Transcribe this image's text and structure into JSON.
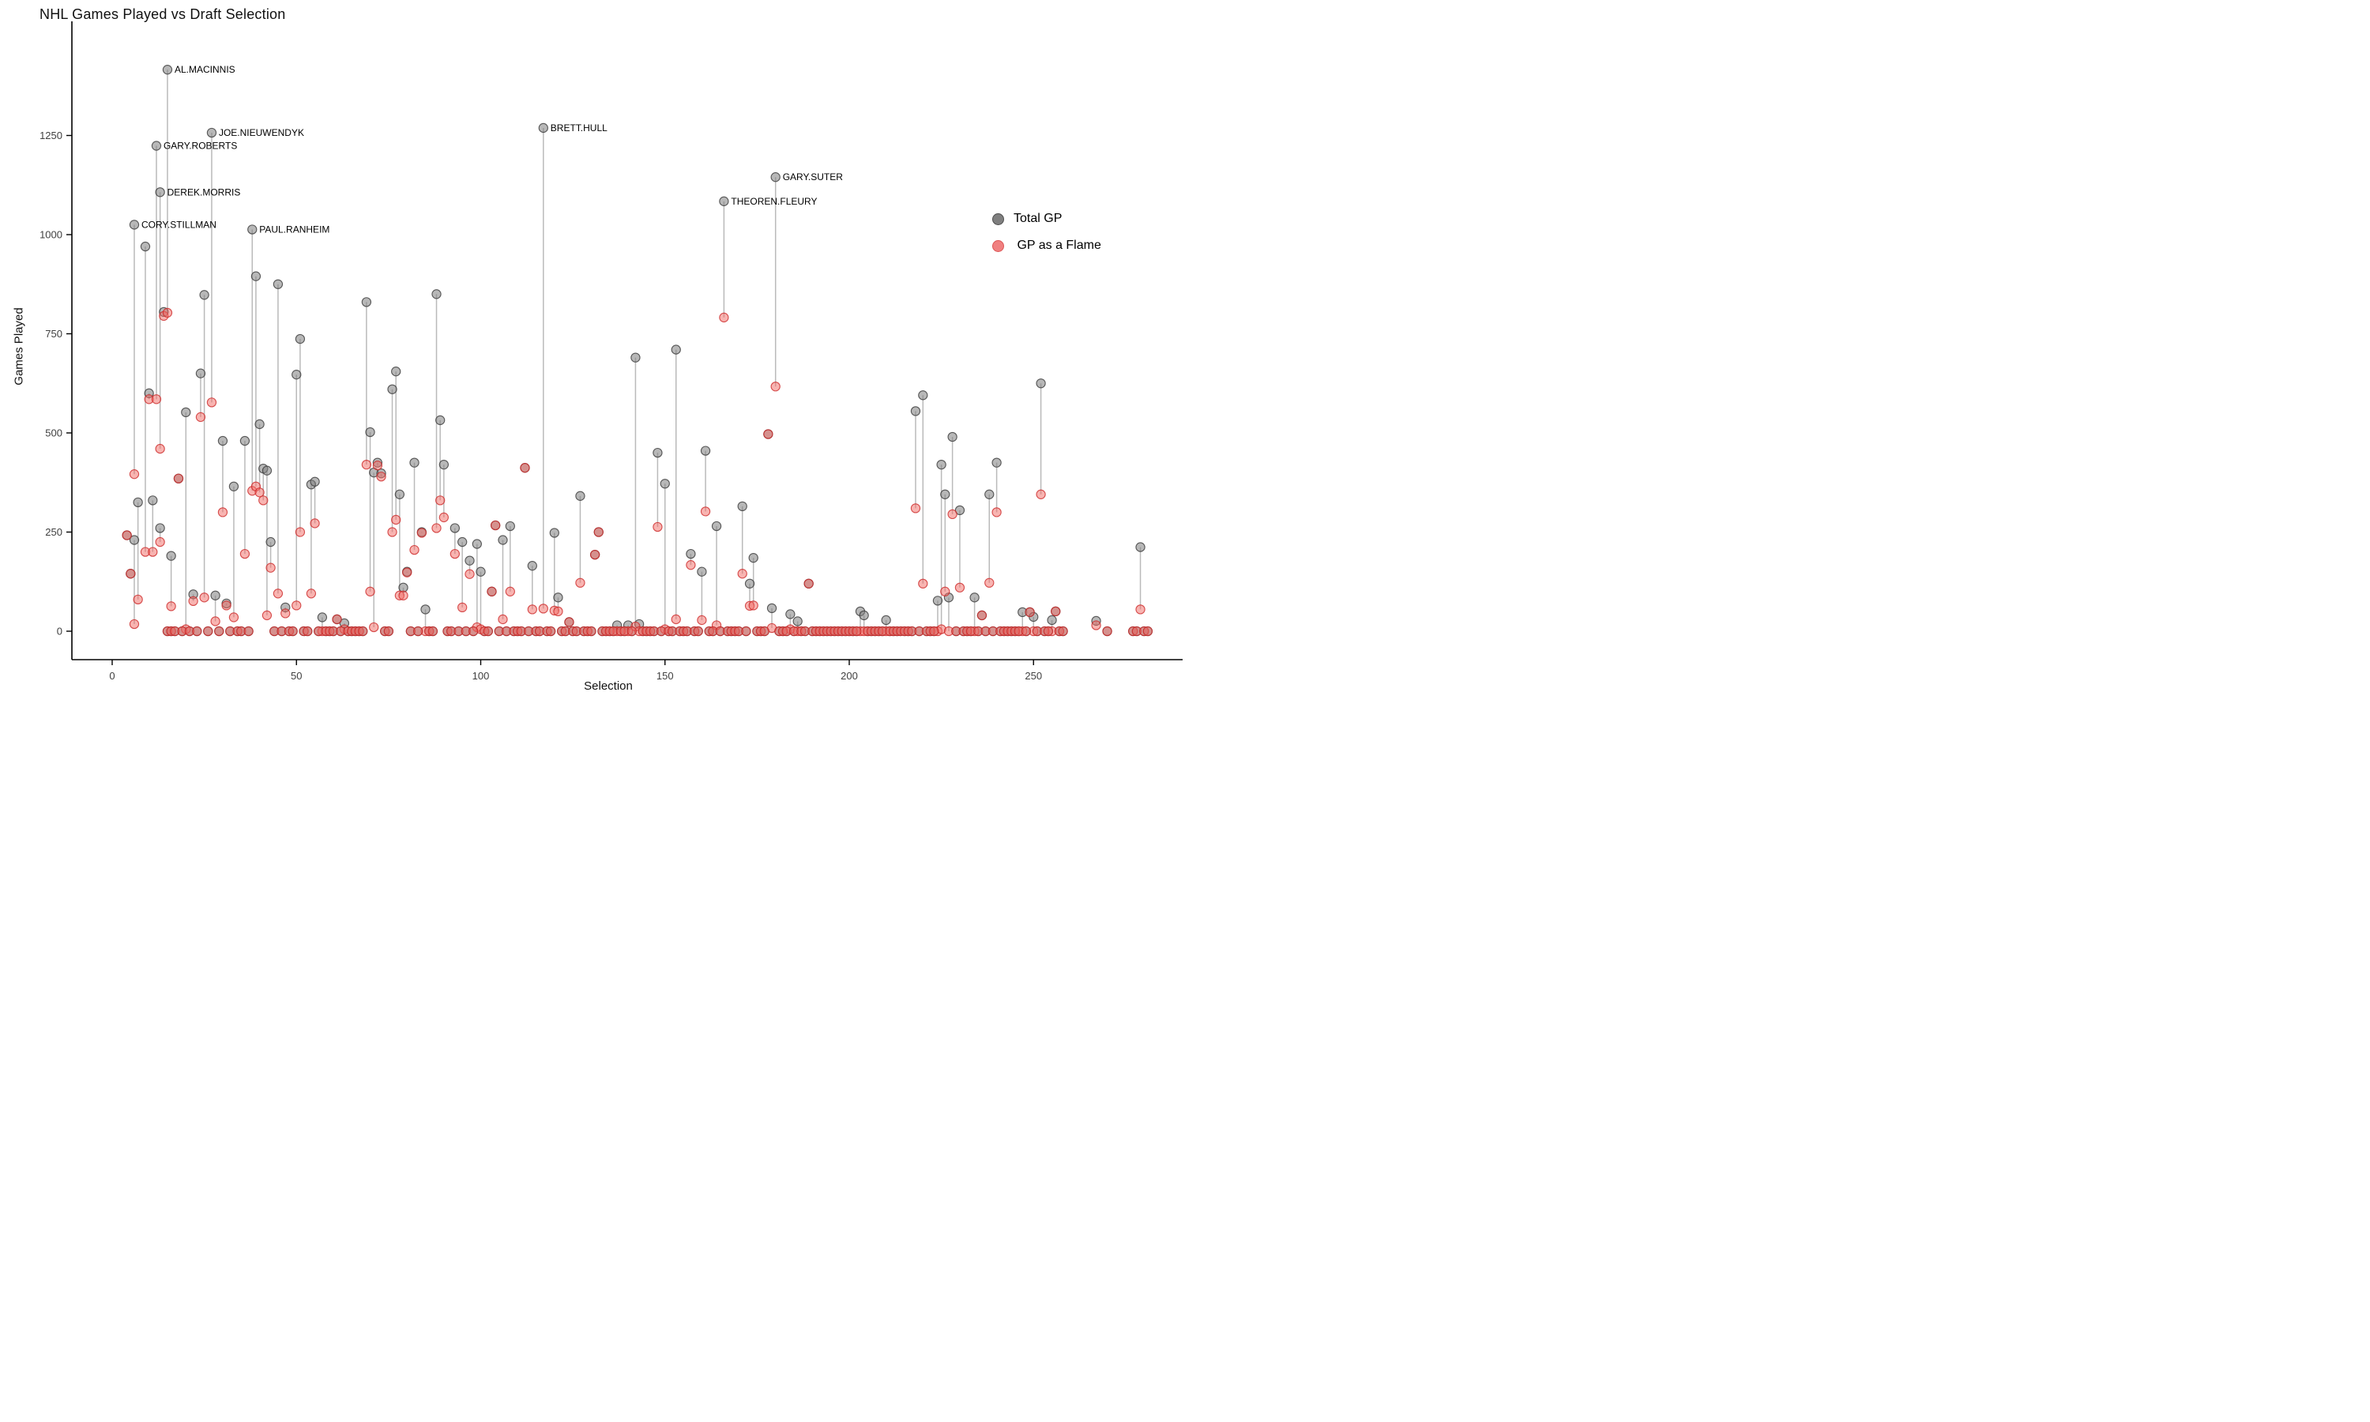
{
  "title": "NHL Games Played vs Draft Selection",
  "x_axis": {
    "label": "Selection",
    "ticks": [
      0,
      50,
      100,
      150,
      200,
      250
    ],
    "range": [
      0,
      290
    ]
  },
  "y_axis": {
    "label": "Games Played",
    "ticks": [
      0,
      250,
      500,
      750,
      1000,
      1250
    ],
    "range": [
      0,
      1450
    ]
  },
  "legend": {
    "items": [
      {
        "label": "Total GP",
        "color": "#7f7f7f",
        "stroke": "#4d4d4d"
      },
      {
        "label": " GP as a Flame",
        "color": "#F08080",
        "stroke": "#DD5555"
      }
    ]
  },
  "colors": {
    "total_fill": "rgba(125,125,125,0.55)",
    "total_stroke": "rgba(64,64,64,0.85)",
    "flame_fill": "rgba(242,106,100,0.50)",
    "flame_stroke": "rgba(205,40,40,0.80)",
    "stem": "rgba(130,130,130,0.55)",
    "axis": "#000000",
    "tick_label": "#404040"
  },
  "chart_data": {
    "type": "scatter",
    "title": "NHL Games Played vs Draft Selection",
    "xlabel": "Selection",
    "ylabel": "Games Played",
    "xlim": [
      0,
      290
    ],
    "ylim": [
      0,
      1450
    ],
    "grid": false,
    "legend_position": "right",
    "series_names": [
      "Total GP",
      "GP as a Flame"
    ],
    "players": [
      {
        "selection": 4,
        "total_gp": 242,
        "flames_gp": 242
      },
      {
        "selection": 5,
        "total_gp": 145,
        "flames_gp": 145
      },
      {
        "selection": 6,
        "total_gp": 1025,
        "flames_gp": 396,
        "label": "CORY.STILLMAN"
      },
      {
        "selection": 6,
        "total_gp": 230,
        "flames_gp": 18
      },
      {
        "selection": 7,
        "total_gp": 325,
        "flames_gp": 80
      },
      {
        "selection": 9,
        "total_gp": 970,
        "flames_gp": 200
      },
      {
        "selection": 10,
        "total_gp": 600,
        "flames_gp": 585
      },
      {
        "selection": 11,
        "total_gp": 330,
        "flames_gp": 200
      },
      {
        "selection": 12,
        "total_gp": 1224,
        "flames_gp": 585,
        "label": "GARY.ROBERTS"
      },
      {
        "selection": 13,
        "total_gp": 1107,
        "flames_gp": 460,
        "label": "DEREK.MORRIS"
      },
      {
        "selection": 13,
        "total_gp": 260,
        "flames_gp": 225
      },
      {
        "selection": 14,
        "total_gp": 805,
        "flames_gp": 795
      },
      {
        "selection": 15,
        "total_gp": 1416,
        "flames_gp": 803,
        "label": "AL.MACINNIS"
      },
      {
        "selection": 16,
        "total_gp": 190,
        "flames_gp": 63
      },
      {
        "selection": 18,
        "total_gp": 385,
        "flames_gp": 385
      },
      {
        "selection": 20,
        "total_gp": 552,
        "flames_gp": 5
      },
      {
        "selection": 22,
        "total_gp": 93,
        "flames_gp": 76
      },
      {
        "selection": 24,
        "total_gp": 650,
        "flames_gp": 540
      },
      {
        "selection": 25,
        "total_gp": 848,
        "flames_gp": 85
      },
      {
        "selection": 27,
        "total_gp": 1257,
        "flames_gp": 577,
        "label": "JOE.NIEUWENDYK"
      },
      {
        "selection": 28,
        "total_gp": 90,
        "flames_gp": 25
      },
      {
        "selection": 30,
        "total_gp": 480,
        "flames_gp": 300
      },
      {
        "selection": 31,
        "total_gp": 70,
        "flames_gp": 65
      },
      {
        "selection": 33,
        "total_gp": 365,
        "flames_gp": 35
      },
      {
        "selection": 36,
        "total_gp": 480,
        "flames_gp": 195
      },
      {
        "selection": 38,
        "total_gp": 1013,
        "flames_gp": 354,
        "label": "PAUL.RANHEIM"
      },
      {
        "selection": 39,
        "total_gp": 895,
        "flames_gp": 365
      },
      {
        "selection": 40,
        "total_gp": 522,
        "flames_gp": 350
      },
      {
        "selection": 41,
        "total_gp": 410,
        "flames_gp": 330
      },
      {
        "selection": 42,
        "total_gp": 405,
        "flames_gp": 40
      },
      {
        "selection": 43,
        "total_gp": 225,
        "flames_gp": 160
      },
      {
        "selection": 45,
        "total_gp": 875,
        "flames_gp": 95
      },
      {
        "selection": 47,
        "total_gp": 60,
        "flames_gp": 45
      },
      {
        "selection": 50,
        "total_gp": 647,
        "flames_gp": 65
      },
      {
        "selection": 51,
        "total_gp": 737,
        "flames_gp": 250
      },
      {
        "selection": 54,
        "total_gp": 370,
        "flames_gp": 95
      },
      {
        "selection": 55,
        "total_gp": 377,
        "flames_gp": 272
      },
      {
        "selection": 57,
        "total_gp": 35,
        "flames_gp": 0
      },
      {
        "selection": 61,
        "total_gp": 30,
        "flames_gp": 30
      },
      {
        "selection": 63,
        "total_gp": 20,
        "flames_gp": 5
      },
      {
        "selection": 69,
        "total_gp": 830,
        "flames_gp": 420
      },
      {
        "selection": 70,
        "total_gp": 502,
        "flames_gp": 100
      },
      {
        "selection": 71,
        "total_gp": 400,
        "flames_gp": 10
      },
      {
        "selection": 72,
        "total_gp": 425,
        "flames_gp": 418
      },
      {
        "selection": 73,
        "total_gp": 398,
        "flames_gp": 390
      },
      {
        "selection": 76,
        "total_gp": 610,
        "flames_gp": 250
      },
      {
        "selection": 77,
        "total_gp": 655,
        "flames_gp": 281
      },
      {
        "selection": 78,
        "total_gp": 345,
        "flames_gp": 90
      },
      {
        "selection": 79,
        "total_gp": 110,
        "flames_gp": 90
      },
      {
        "selection": 80,
        "total_gp": 150,
        "flames_gp": 148
      },
      {
        "selection": 82,
        "total_gp": 425,
        "flames_gp": 205
      },
      {
        "selection": 84,
        "total_gp": 250,
        "flames_gp": 248
      },
      {
        "selection": 85,
        "total_gp": 55,
        "flames_gp": 0
      },
      {
        "selection": 88,
        "total_gp": 850,
        "flames_gp": 260
      },
      {
        "selection": 89,
        "total_gp": 532,
        "flames_gp": 330
      },
      {
        "selection": 90,
        "total_gp": 420,
        "flames_gp": 287
      },
      {
        "selection": 93,
        "total_gp": 260,
        "flames_gp": 195
      },
      {
        "selection": 95,
        "total_gp": 225,
        "flames_gp": 60
      },
      {
        "selection": 97,
        "total_gp": 178,
        "flames_gp": 144
      },
      {
        "selection": 99,
        "total_gp": 220,
        "flames_gp": 10
      },
      {
        "selection": 100,
        "total_gp": 150,
        "flames_gp": 5
      },
      {
        "selection": 103,
        "total_gp": 100,
        "flames_gp": 100
      },
      {
        "selection": 104,
        "total_gp": 267,
        "flames_gp": 267
      },
      {
        "selection": 106,
        "total_gp": 230,
        "flames_gp": 30
      },
      {
        "selection": 108,
        "total_gp": 265,
        "flames_gp": 100
      },
      {
        "selection": 112,
        "total_gp": 412,
        "flames_gp": 412
      },
      {
        "selection": 114,
        "total_gp": 165,
        "flames_gp": 55
      },
      {
        "selection": 117,
        "total_gp": 1269,
        "flames_gp": 57,
        "label": "BRETT.HULL"
      },
      {
        "selection": 120,
        "total_gp": 248,
        "flames_gp": 52
      },
      {
        "selection": 121,
        "total_gp": 85,
        "flames_gp": 50
      },
      {
        "selection": 124,
        "total_gp": 23,
        "flames_gp": 23
      },
      {
        "selection": 127,
        "total_gp": 341,
        "flames_gp": 122
      },
      {
        "selection": 131,
        "total_gp": 193,
        "flames_gp": 193
      },
      {
        "selection": 132,
        "total_gp": 250,
        "flames_gp": 250
      },
      {
        "selection": 137,
        "total_gp": 15,
        "flames_gp": 0
      },
      {
        "selection": 140,
        "total_gp": 15,
        "flames_gp": 0
      },
      {
        "selection": 142,
        "total_gp": 690,
        "flames_gp": 12
      },
      {
        "selection": 143,
        "total_gp": 18,
        "flames_gp": 0
      },
      {
        "selection": 148,
        "total_gp": 450,
        "flames_gp": 263
      },
      {
        "selection": 150,
        "total_gp": 372,
        "flames_gp": 5
      },
      {
        "selection": 153,
        "total_gp": 710,
        "flames_gp": 30
      },
      {
        "selection": 157,
        "total_gp": 195,
        "flames_gp": 167
      },
      {
        "selection": 160,
        "total_gp": 150,
        "flames_gp": 28
      },
      {
        "selection": 161,
        "total_gp": 455,
        "flames_gp": 302
      },
      {
        "selection": 164,
        "total_gp": 265,
        "flames_gp": 15
      },
      {
        "selection": 166,
        "total_gp": 1084,
        "flames_gp": 791,
        "label": "THEOREN.FLEURY"
      },
      {
        "selection": 171,
        "total_gp": 315,
        "flames_gp": 145
      },
      {
        "selection": 173,
        "total_gp": 120,
        "flames_gp": 64
      },
      {
        "selection": 174,
        "total_gp": 185,
        "flames_gp": 65
      },
      {
        "selection": 178,
        "total_gp": 497,
        "flames_gp": 497
      },
      {
        "selection": 179,
        "total_gp": 58,
        "flames_gp": 8
      },
      {
        "selection": 180,
        "total_gp": 1145,
        "flames_gp": 617,
        "label": "GARY.SUTER"
      },
      {
        "selection": 184,
        "total_gp": 43,
        "flames_gp": 5
      },
      {
        "selection": 186,
        "total_gp": 25,
        "flames_gp": 0
      },
      {
        "selection": 189,
        "total_gp": 120,
        "flames_gp": 120
      },
      {
        "selection": 203,
        "total_gp": 50,
        "flames_gp": 0
      },
      {
        "selection": 204,
        "total_gp": 40,
        "flames_gp": 0
      },
      {
        "selection": 210,
        "total_gp": 28,
        "flames_gp": 0
      },
      {
        "selection": 218,
        "total_gp": 555,
        "flames_gp": 310
      },
      {
        "selection": 220,
        "total_gp": 595,
        "flames_gp": 120
      },
      {
        "selection": 224,
        "total_gp": 77,
        "flames_gp": 0
      },
      {
        "selection": 225,
        "total_gp": 420,
        "flames_gp": 5
      },
      {
        "selection": 226,
        "total_gp": 345,
        "flames_gp": 100
      },
      {
        "selection": 227,
        "total_gp": 85,
        "flames_gp": 0
      },
      {
        "selection": 228,
        "total_gp": 490,
        "flames_gp": 295
      },
      {
        "selection": 230,
        "total_gp": 305,
        "flames_gp": 110
      },
      {
        "selection": 234,
        "total_gp": 85,
        "flames_gp": 0
      },
      {
        "selection": 236,
        "total_gp": 40,
        "flames_gp": 40
      },
      {
        "selection": 238,
        "total_gp": 345,
        "flames_gp": 122
      },
      {
        "selection": 240,
        "total_gp": 425,
        "flames_gp": 300
      },
      {
        "selection": 247,
        "total_gp": 48,
        "flames_gp": 0
      },
      {
        "selection": 249,
        "total_gp": 48,
        "flames_gp": 48
      },
      {
        "selection": 250,
        "total_gp": 36,
        "flames_gp": 0
      },
      {
        "selection": 252,
        "total_gp": 625,
        "flames_gp": 345
      },
      {
        "selection": 255,
        "total_gp": 28,
        "flames_gp": 0
      },
      {
        "selection": 256,
        "total_gp": 50,
        "flames_gp": 50
      },
      {
        "selection": 267,
        "total_gp": 26,
        "flames_gp": 15
      },
      {
        "selection": 279,
        "total_gp": 212,
        "flames_gp": 55
      }
    ],
    "zero_gp_selections": [
      15,
      16,
      17,
      19,
      21,
      23,
      26,
      29,
      32,
      34,
      35,
      37,
      44,
      46,
      48,
      49,
      52,
      53,
      56,
      58,
      59,
      60,
      62,
      64,
      65,
      66,
      67,
      68,
      74,
      75,
      81,
      83,
      86,
      87,
      91,
      92,
      94,
      96,
      98,
      101,
      102,
      105,
      107,
      109,
      110,
      111,
      113,
      115,
      116,
      118,
      119,
      122,
      123,
      125,
      126,
      128,
      129,
      130,
      133,
      134,
      135,
      136,
      138,
      139,
      141,
      144,
      145,
      146,
      147,
      149,
      151,
      152,
      154,
      155,
      156,
      158,
      159,
      162,
      163,
      165,
      167,
      168,
      169,
      170,
      172,
      175,
      176,
      177,
      181,
      182,
      183,
      185,
      187,
      188,
      190,
      191,
      192,
      193,
      194,
      195,
      196,
      197,
      198,
      199,
      200,
      201,
      202,
      205,
      206,
      207,
      208,
      209,
      211,
      212,
      213,
      214,
      215,
      216,
      217,
      219,
      221,
      222,
      223,
      229,
      231,
      232,
      233,
      235,
      237,
      239,
      241,
      242,
      243,
      244,
      245,
      246,
      248,
      251,
      253,
      254,
      257,
      258,
      270,
      277,
      278,
      280,
      281
    ]
  }
}
